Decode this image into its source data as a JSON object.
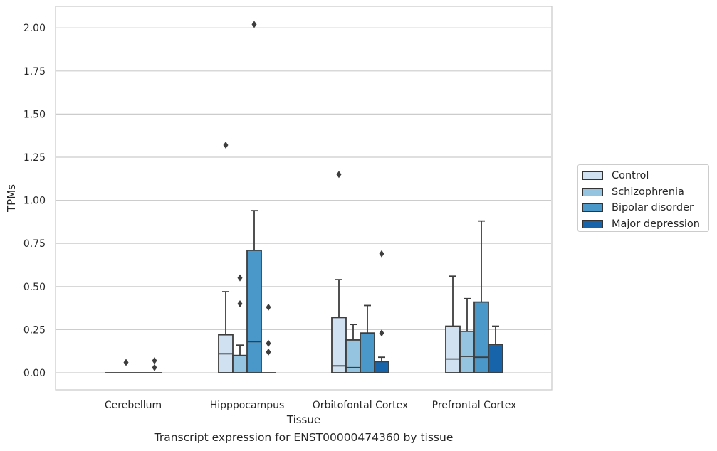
{
  "chart_data": {
    "type": "box",
    "title": "",
    "caption": "Transcript expression for ENST00000474360 by tissue",
    "xlabel": "Tissue",
    "ylabel": "TPMs",
    "ylim": [
      -0.1,
      2.12
    ],
    "yticks": [
      "0.00",
      "0.25",
      "0.50",
      "0.75",
      "1.00",
      "1.25",
      "1.50",
      "1.75",
      "2.00"
    ],
    "grid": "horizontal",
    "legend_position": "right",
    "categories": [
      "Cerebellum",
      "Hipppocampus",
      "Orbitofontal Cortex",
      "Prefrontal Cortex"
    ],
    "series": [
      {
        "name": "Control",
        "color": "#d0e1f2",
        "boxes": [
          {
            "q1": 0,
            "median": 0,
            "q3": 0,
            "whisker_low": 0,
            "whisker_high": 0,
            "outliers": []
          },
          {
            "q1": 0,
            "median": 0.11,
            "q3": 0.22,
            "whisker_low": 0,
            "whisker_high": 0.47,
            "outliers": [
              1.32
            ]
          },
          {
            "q1": 0,
            "median": 0.04,
            "q3": 0.32,
            "whisker_low": 0,
            "whisker_high": 0.54,
            "outliers": [
              1.15
            ]
          },
          {
            "q1": 0,
            "median": 0.08,
            "q3": 0.27,
            "whisker_low": 0,
            "whisker_high": 0.56,
            "outliers": []
          }
        ]
      },
      {
        "name": "Schizophrenia",
        "color": "#94c4df",
        "boxes": [
          {
            "q1": 0,
            "median": 0,
            "q3": 0,
            "whisker_low": 0,
            "whisker_high": 0,
            "outliers": [
              0.06
            ]
          },
          {
            "q1": 0,
            "median": 0.1,
            "q3": 0.1,
            "whisker_low": 0,
            "whisker_high": 0.16,
            "outliers": [
              0.55,
              0.4
            ]
          },
          {
            "q1": 0,
            "median": 0.03,
            "q3": 0.19,
            "whisker_low": 0,
            "whisker_high": 0.28,
            "outliers": []
          },
          {
            "q1": 0,
            "median": 0.095,
            "q3": 0.24,
            "whisker_low": 0,
            "whisker_high": 0.43,
            "outliers": []
          }
        ]
      },
      {
        "name": "Bipolar disorder",
        "color": "#4a98c9",
        "boxes": [
          {
            "q1": 0,
            "median": 0,
            "q3": 0,
            "whisker_low": 0,
            "whisker_high": 0,
            "outliers": []
          },
          {
            "q1": 0,
            "median": 0.18,
            "q3": 0.71,
            "whisker_low": 0,
            "whisker_high": 0.94,
            "outliers": [
              2.02
            ]
          },
          {
            "q1": 0,
            "median": 0.23,
            "q3": 0.23,
            "whisker_low": 0,
            "whisker_high": 0.39,
            "outliers": []
          },
          {
            "q1": 0,
            "median": 0.09,
            "q3": 0.41,
            "whisker_low": 0,
            "whisker_high": 0.88,
            "outliers": []
          }
        ]
      },
      {
        "name": "Major depression",
        "color": "#1764ab",
        "boxes": [
          {
            "q1": 0,
            "median": 0,
            "q3": 0,
            "whisker_low": 0,
            "whisker_high": 0,
            "outliers": [
              0.07,
              0.03
            ]
          },
          {
            "q1": 0,
            "median": 0,
            "q3": 0,
            "whisker_low": 0,
            "whisker_high": 0,
            "outliers": [
              0.38,
              0.17,
              0.12
            ]
          },
          {
            "q1": 0,
            "median": 0.065,
            "q3": 0.065,
            "whisker_low": 0,
            "whisker_high": 0.09,
            "outliers": [
              0.69,
              0.23
            ]
          },
          {
            "q1": 0,
            "median": 0.165,
            "q3": 0.165,
            "whisker_low": 0,
            "whisker_high": 0.27,
            "outliers": []
          }
        ]
      }
    ]
  }
}
